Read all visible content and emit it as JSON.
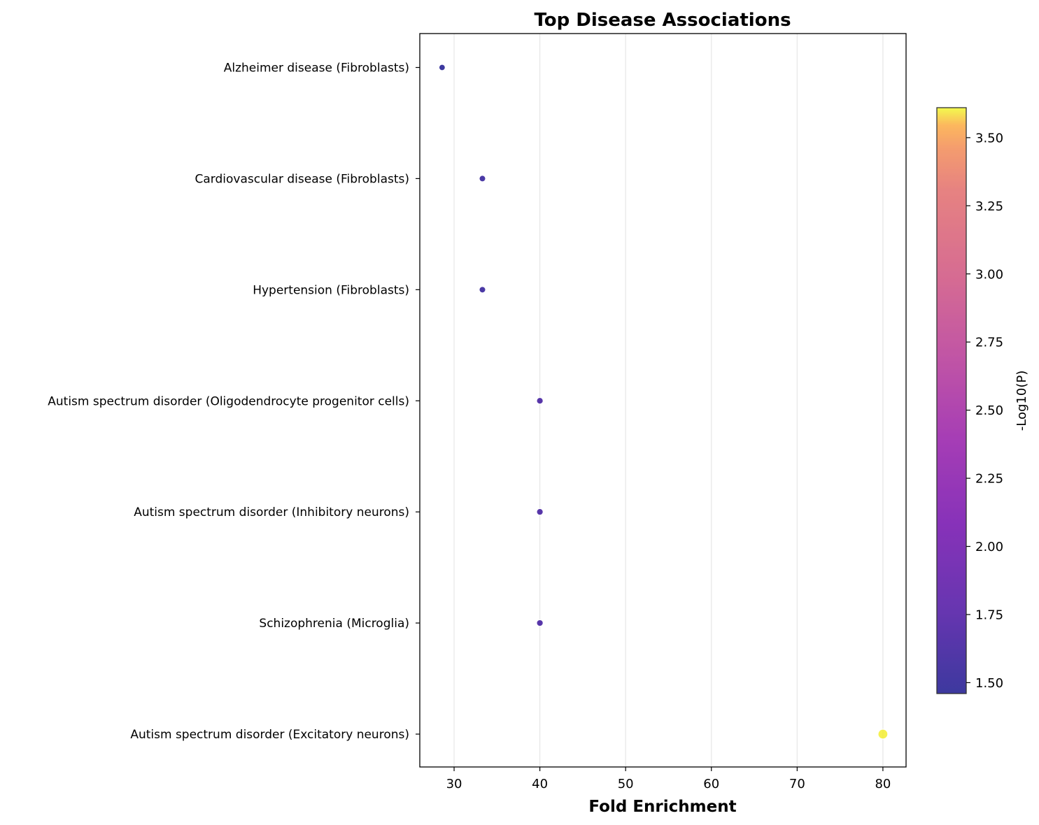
{
  "chart_data": {
    "type": "scatter",
    "title": "Top Disease Associations",
    "xlabel": "Fold Enrichment",
    "ylabel": "",
    "xlim": [
      26,
      82.7
    ],
    "xticks": [
      30,
      40,
      50,
      60,
      70,
      80
    ],
    "grid": "vertical",
    "categories": [
      "Alzheimer disease (Fibroblasts)",
      "Cardiovascular disease (Fibroblasts)",
      "Hypertension (Fibroblasts)",
      "Autism spectrum disorder (Oligodendrocyte progenitor cells)",
      "Autism spectrum disorder (Inhibitory neurons)",
      "Schizophrenia (Microglia)",
      "Autism spectrum disorder (Excitatory neurons)"
    ],
    "points": [
      {
        "category": "Alzheimer disease (Fibroblasts)",
        "x": 28.6,
        "neg_log10_p": 1.46
      },
      {
        "category": "Cardiovascular disease (Fibroblasts)",
        "x": 33.3,
        "neg_log10_p": 1.55
      },
      {
        "category": "Hypertension (Fibroblasts)",
        "x": 33.3,
        "neg_log10_p": 1.55
      },
      {
        "category": "Autism spectrum disorder (Oligodendrocyte progenitor cells)",
        "x": 40.0,
        "neg_log10_p": 1.65
      },
      {
        "category": "Autism spectrum disorder (Inhibitory neurons)",
        "x": 40.0,
        "neg_log10_p": 1.65
      },
      {
        "category": "Schizophrenia (Microglia)",
        "x": 40.0,
        "neg_log10_p": 1.65
      },
      {
        "category": "Autism spectrum disorder (Excitatory neurons)",
        "x": 80.0,
        "neg_log10_p": 3.6
      }
    ],
    "colorbar": {
      "label": "-Log10(P)",
      "colormap": "plasma",
      "range": [
        1.46,
        3.61
      ],
      "ticks": [
        1.5,
        1.75,
        2.0,
        2.25,
        2.5,
        2.75,
        3.0,
        3.25,
        3.5
      ],
      "tick_labels": [
        "1.50",
        "1.75",
        "2.00",
        "2.25",
        "2.50",
        "2.75",
        "3.00",
        "3.25",
        "3.50"
      ]
    }
  }
}
